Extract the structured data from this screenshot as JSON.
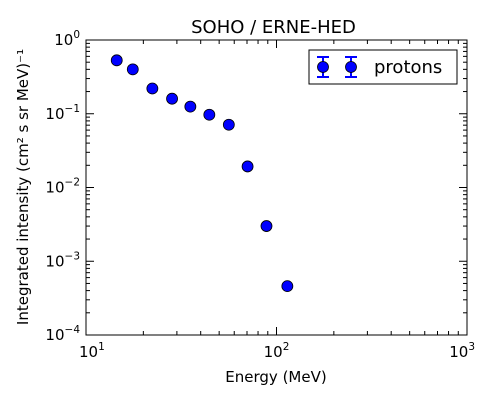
{
  "chart_data": {
    "type": "scatter",
    "title": "SOHO / ERNE-HED",
    "xlabel": "Energy (MeV)",
    "ylabel": "Integrated intensity (cm² s sr MeV)⁻¹",
    "xscale": "log",
    "yscale": "log",
    "xlim": [
      10,
      1000
    ],
    "ylim": [
      0.0001,
      1
    ],
    "xticks": [
      10,
      100,
      1000
    ],
    "yticks": [
      0.0001,
      0.001,
      0.01,
      0.1,
      1
    ],
    "xtick_labels": [
      {
        "base": "10",
        "exp": "1"
      },
      {
        "base": "10",
        "exp": "2"
      },
      {
        "base": "10",
        "exp": "3"
      }
    ],
    "ytick_labels": [
      {
        "base": "10",
        "exp": "−4"
      },
      {
        "base": "10",
        "exp": "−3"
      },
      {
        "base": "10",
        "exp": "−2"
      },
      {
        "base": "10",
        "exp": "−1"
      },
      {
        "base": "10",
        "exp": "0"
      }
    ],
    "grid": false,
    "legend_position": "top-right",
    "series": [
      {
        "name": "protons",
        "color": "#0000ff",
        "marker": "circle-errorbar",
        "x": [
          14.5,
          17.6,
          22.3,
          28.3,
          35.3,
          44.4,
          56.2,
          70.5,
          88.6,
          114
        ],
        "y": [
          0.53,
          0.4,
          0.22,
          0.16,
          0.125,
          0.097,
          0.071,
          0.0193,
          0.003,
          0.00046
        ]
      }
    ]
  }
}
